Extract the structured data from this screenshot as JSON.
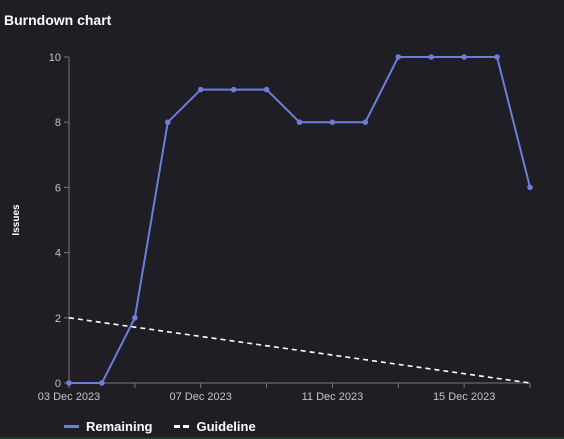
{
  "title": "Burndown chart",
  "chart_data": {
    "type": "line",
    "ylabel": "Issues",
    "xlabel": "",
    "ylim": [
      0,
      10
    ],
    "yticks": [
      0,
      2,
      4,
      6,
      8,
      10
    ],
    "x": [
      "2023-12-03",
      "2023-12-04",
      "2023-12-05",
      "2023-12-06",
      "2023-12-07",
      "2023-12-08",
      "2023-12-09",
      "2023-12-10",
      "2023-12-11",
      "2023-12-12",
      "2023-12-13",
      "2023-12-14",
      "2023-12-15",
      "2023-12-16",
      "2023-12-17"
    ],
    "xtick_labels": [
      "03 Dec 2023",
      "07 Dec 2023",
      "11 Dec 2023",
      "15 Dec 2023"
    ],
    "xtick_dates": [
      "2023-12-03",
      "2023-12-07",
      "2023-12-11",
      "2023-12-15"
    ],
    "series": [
      {
        "name": "Remaining",
        "color": "#6e7ddc",
        "style": "solid-markers",
        "values": [
          0,
          0,
          2,
          8,
          9,
          9,
          9,
          8,
          8,
          8,
          10,
          10,
          10,
          10,
          6
        ]
      },
      {
        "name": "Guideline",
        "color": "#ffffff",
        "style": "dashed",
        "x": [
          "2023-12-03",
          "2023-12-17"
        ],
        "values": [
          2,
          0
        ]
      }
    ],
    "legend_position": "bottom-left",
    "grid": false
  }
}
